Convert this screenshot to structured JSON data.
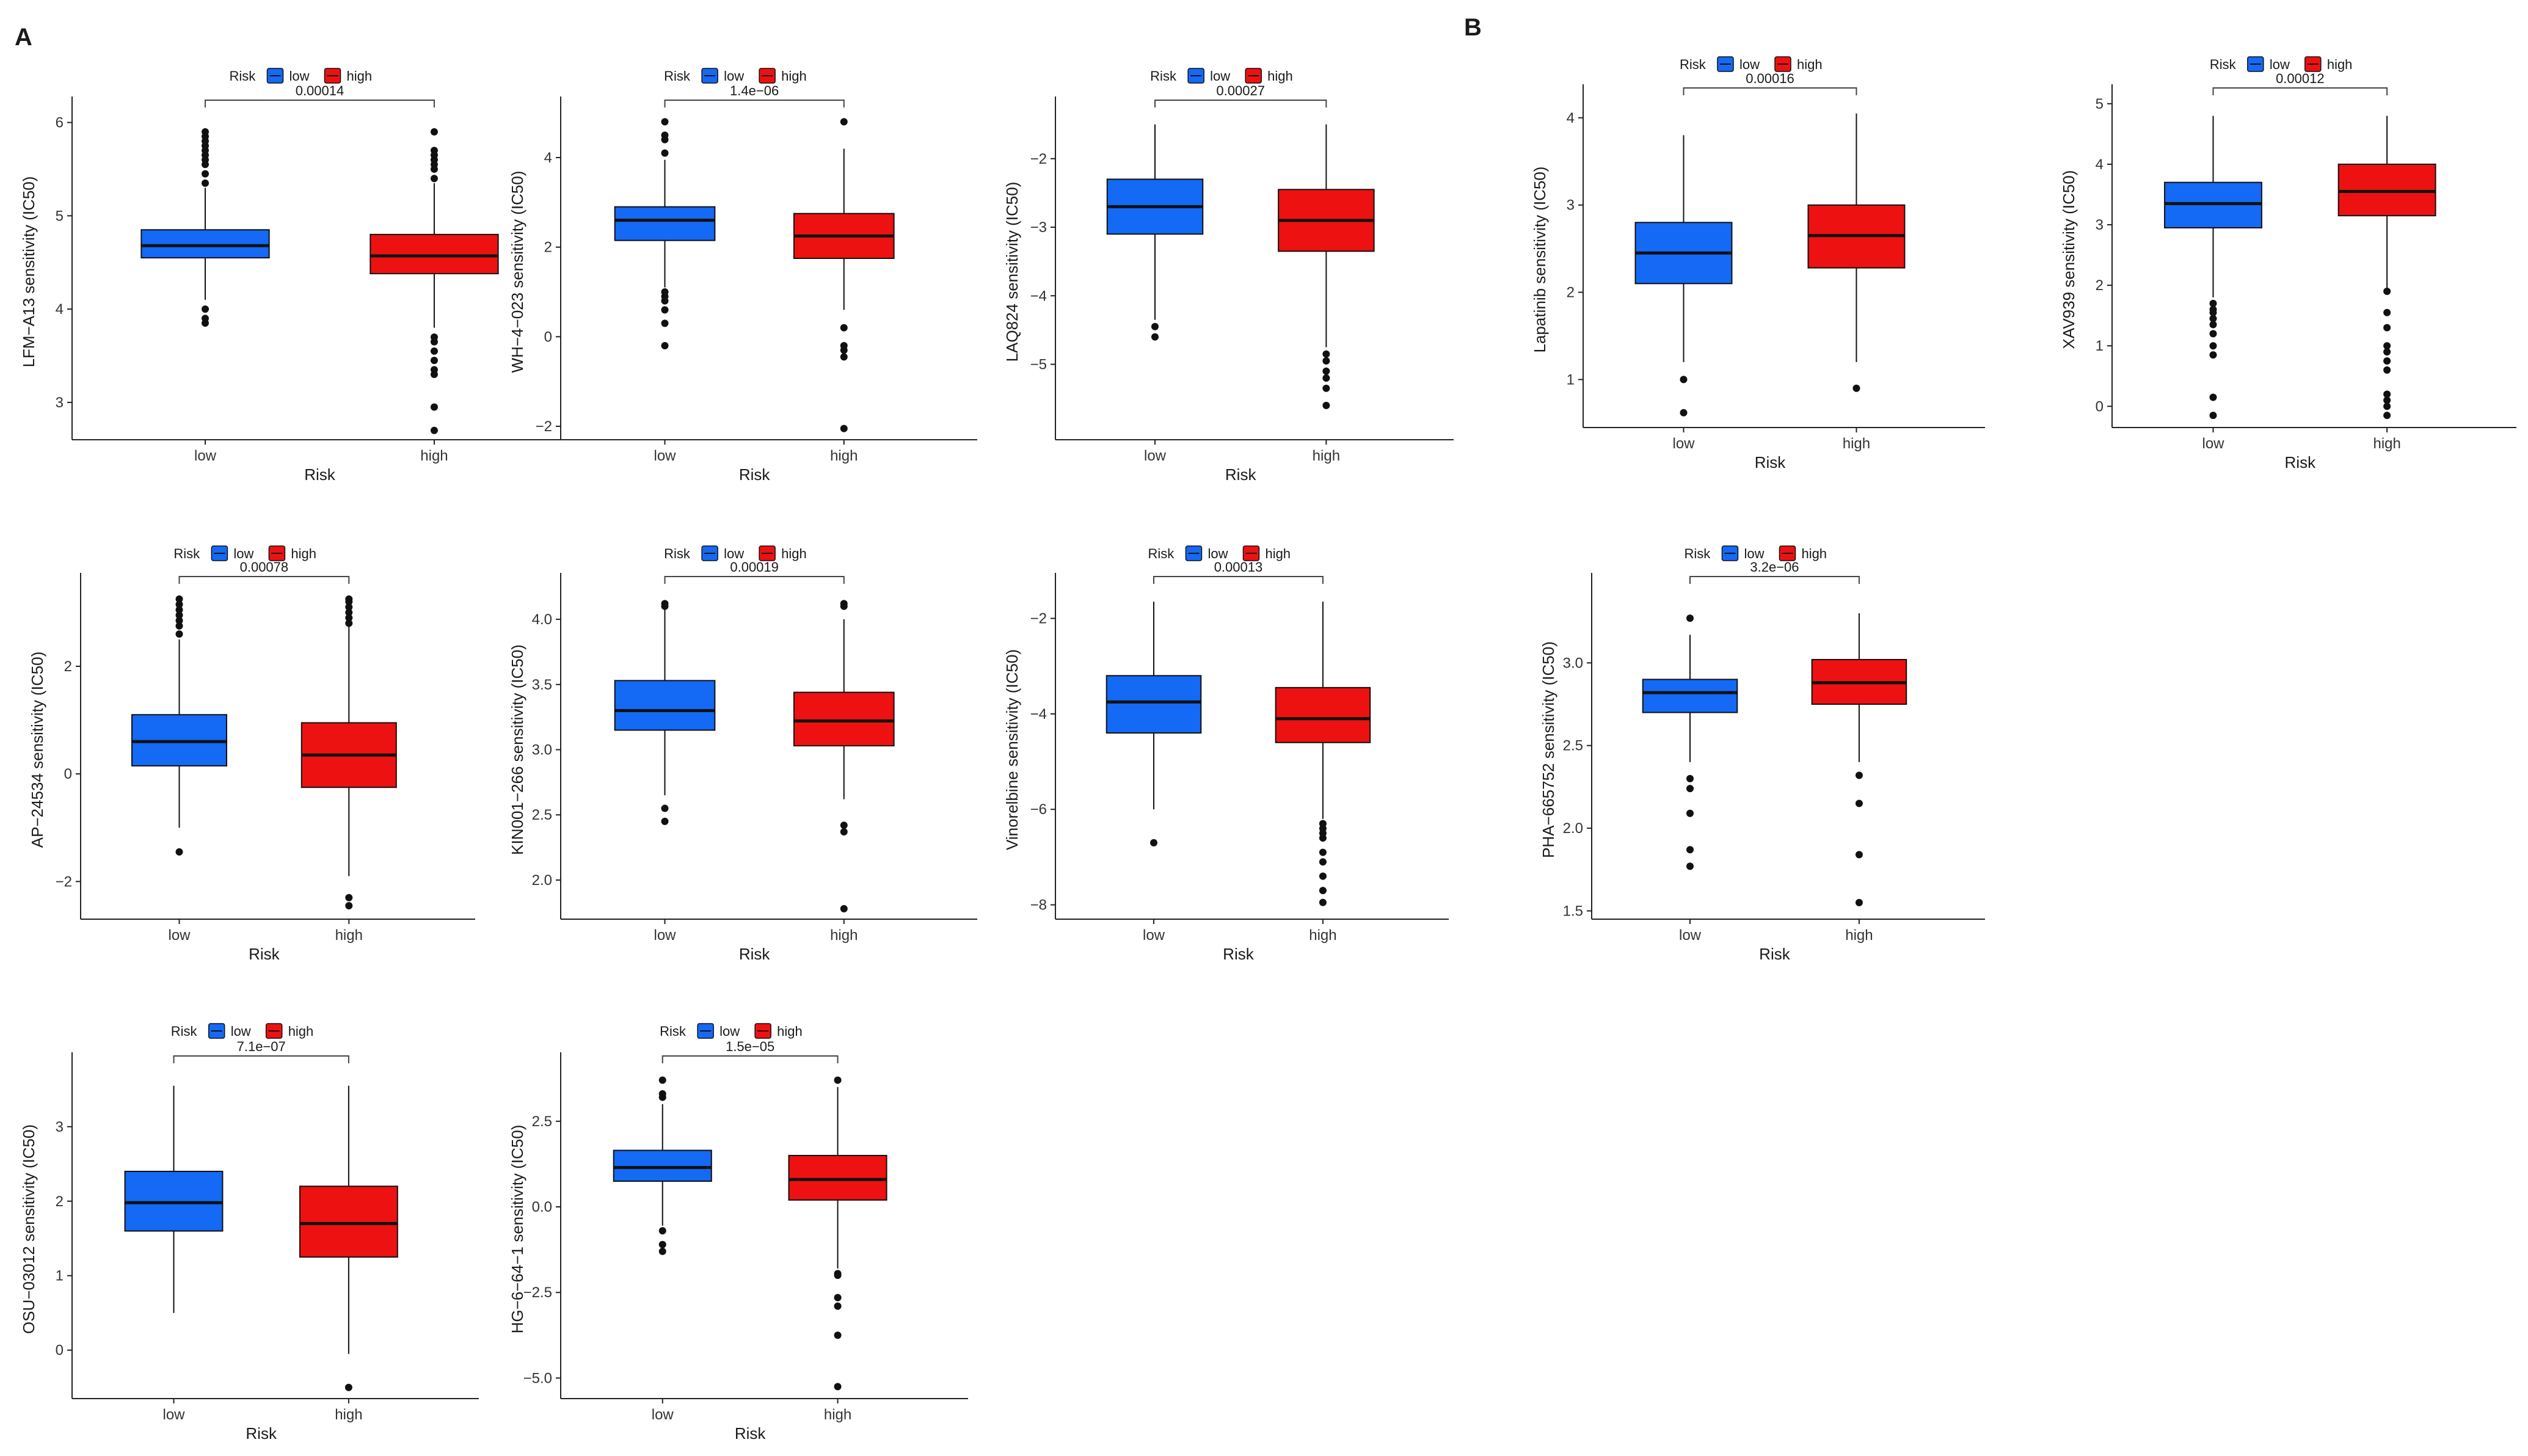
{
  "panel_labels": [
    "A",
    "B"
  ],
  "colors": {
    "low": "#1469f5",
    "high": "#ee1111"
  },
  "legend": {
    "title": "Risk",
    "items": [
      "low",
      "high"
    ]
  },
  "chart_data": [
    {
      "id": "lfm-a13",
      "panel": "A",
      "type": "box",
      "title": "",
      "ylabel": "LFM−A13 sensitivity (IC50)",
      "xlabel": "Risk",
      "categories": [
        "low",
        "high"
      ],
      "ylim": [
        2.6,
        6.2
      ],
      "yticks": [
        {
          "v": 3,
          "t": "3"
        },
        {
          "v": 4,
          "t": "4"
        },
        {
          "v": 5,
          "t": "5"
        },
        {
          "v": 6,
          "t": "6"
        }
      ],
      "pvalue": "0.00014",
      "boxes": [
        {
          "group": "low",
          "q1": 4.55,
          "median": 4.68,
          "q3": 4.85,
          "whisker_low": 4.1,
          "whisker_high": 5.3,
          "outliers": [
            3.85,
            3.9,
            4.0,
            5.35,
            5.45,
            5.55,
            5.6,
            5.65,
            5.7,
            5.75,
            5.8,
            5.85,
            5.9
          ]
        },
        {
          "group": "high",
          "q1": 4.38,
          "median": 4.57,
          "q3": 4.8,
          "whisker_low": 3.8,
          "whisker_high": 5.35,
          "outliers": [
            2.7,
            2.95,
            3.3,
            3.35,
            3.45,
            3.55,
            3.65,
            3.7,
            5.4,
            5.5,
            5.55,
            5.6,
            5.65,
            5.7,
            5.9
          ]
        }
      ]
    },
    {
      "id": "wh-4-023",
      "panel": "A",
      "type": "box",
      "title": "",
      "ylabel": "WH−4−023 sensitivity (IC50)",
      "xlabel": "Risk",
      "categories": [
        "low",
        "high"
      ],
      "ylim": [
        -2.3,
        5.2
      ],
      "yticks": [
        {
          "v": -2,
          "t": "−2"
        },
        {
          "v": 0,
          "t": "0"
        },
        {
          "v": 2,
          "t": "2"
        },
        {
          "v": 4,
          "t": "4"
        }
      ],
      "pvalue": "1.4e−06",
      "boxes": [
        {
          "group": "low",
          "q1": 2.15,
          "median": 2.6,
          "q3": 2.9,
          "whisker_low": 1.1,
          "whisker_high": 3.95,
          "outliers": [
            -0.2,
            0.3,
            0.6,
            0.8,
            0.9,
            1.0,
            4.1,
            4.4,
            4.5,
            4.8
          ]
        },
        {
          "group": "high",
          "q1": 1.75,
          "median": 2.25,
          "q3": 2.75,
          "whisker_low": 0.6,
          "whisker_high": 4.2,
          "outliers": [
            -2.05,
            -0.45,
            -0.3,
            -0.2,
            0.2,
            4.8
          ]
        }
      ]
    },
    {
      "id": "laq824",
      "panel": "A",
      "type": "box",
      "title": "",
      "ylabel": "LAQ824 sensitivity (IC50)",
      "xlabel": "Risk",
      "categories": [
        "low",
        "high"
      ],
      "ylim": [
        -6.1,
        -1.2
      ],
      "yticks": [
        {
          "v": -5,
          "t": "−5"
        },
        {
          "v": -4,
          "t": "−4"
        },
        {
          "v": -3,
          "t": "−3"
        },
        {
          "v": -2,
          "t": "−2"
        }
      ],
      "pvalue": "0.00027",
      "boxes": [
        {
          "group": "low",
          "q1": -3.1,
          "median": -2.7,
          "q3": -2.3,
          "whisker_low": -4.35,
          "whisker_high": -1.5,
          "outliers": [
            -4.45,
            -4.6
          ]
        },
        {
          "group": "high",
          "q1": -3.35,
          "median": -2.9,
          "q3": -2.45,
          "whisker_low": -4.75,
          "whisker_high": -1.5,
          "outliers": [
            -4.85,
            -4.95,
            -5.1,
            -5.2,
            -5.35,
            -5.6
          ]
        }
      ]
    },
    {
      "id": "lapatinib",
      "panel": "B",
      "type": "box",
      "title": "",
      "ylabel": "Lapatinib sensitivity (IC50)",
      "xlabel": "Risk",
      "categories": [
        "low",
        "high"
      ],
      "ylim": [
        0.45,
        4.3
      ],
      "yticks": [
        {
          "v": 1,
          "t": "1"
        },
        {
          "v": 2,
          "t": "2"
        },
        {
          "v": 3,
          "t": "3"
        },
        {
          "v": 4,
          "t": "4"
        }
      ],
      "pvalue": "0.00016",
      "boxes": [
        {
          "group": "low",
          "q1": 2.1,
          "median": 2.45,
          "q3": 2.8,
          "whisker_low": 1.2,
          "whisker_high": 3.8,
          "outliers": [
            0.62,
            1.0
          ]
        },
        {
          "group": "high",
          "q1": 2.28,
          "median": 2.65,
          "q3": 3.0,
          "whisker_low": 1.2,
          "whisker_high": 4.05,
          "outliers": [
            0.9
          ]
        }
      ]
    },
    {
      "id": "xav939",
      "panel": "B",
      "type": "box",
      "title": "",
      "ylabel": "XAV939 sensitivity (IC50)",
      "xlabel": "Risk",
      "categories": [
        "low",
        "high"
      ],
      "ylim": [
        -0.35,
        5.2
      ],
      "yticks": [
        {
          "v": 0,
          "t": "0"
        },
        {
          "v": 1,
          "t": "1"
        },
        {
          "v": 2,
          "t": "2"
        },
        {
          "v": 3,
          "t": "3"
        },
        {
          "v": 4,
          "t": "4"
        },
        {
          "v": 5,
          "t": "5"
        }
      ],
      "pvalue": "0.00012",
      "boxes": [
        {
          "group": "low",
          "q1": 2.95,
          "median": 3.35,
          "q3": 3.7,
          "whisker_low": 1.8,
          "whisker_high": 4.8,
          "outliers": [
            -0.15,
            0.15,
            0.85,
            1.0,
            1.2,
            1.35,
            1.45,
            1.55,
            1.6,
            1.7
          ]
        },
        {
          "group": "high",
          "q1": 3.15,
          "median": 3.55,
          "q3": 4.0,
          "whisker_low": 1.95,
          "whisker_high": 4.8,
          "outliers": [
            -0.15,
            0.0,
            0.1,
            0.2,
            0.6,
            0.75,
            0.9,
            1.0,
            1.3,
            1.55,
            1.9
          ]
        }
      ]
    },
    {
      "id": "ap-24534",
      "panel": "A",
      "type": "box",
      "title": "",
      "ylabel": "AP−24534 sensitivity (IC50)",
      "xlabel": "Risk",
      "categories": [
        "low",
        "high"
      ],
      "ylim": [
        -2.7,
        3.6
      ],
      "yticks": [
        {
          "v": -2,
          "t": "−2"
        },
        {
          "v": 0,
          "t": "0"
        },
        {
          "v": 2,
          "t": "2"
        }
      ],
      "pvalue": "0.00078",
      "boxes": [
        {
          "group": "low",
          "q1": 0.15,
          "median": 0.6,
          "q3": 1.1,
          "whisker_low": -1.0,
          "whisker_high": 2.5,
          "outliers": [
            -1.45,
            2.6,
            2.75,
            2.85,
            2.95,
            3.05,
            3.15,
            3.25
          ]
        },
        {
          "group": "high",
          "q1": -0.25,
          "median": 0.35,
          "q3": 0.95,
          "whisker_low": -1.9,
          "whisker_high": 2.75,
          "outliers": [
            -2.3,
            -2.45,
            2.8,
            2.9,
            3.0,
            3.1,
            3.2,
            3.25
          ]
        }
      ]
    },
    {
      "id": "kin001-266",
      "panel": "A",
      "type": "box",
      "title": "",
      "ylabel": "KIN001−266 sensitivity (IC50)",
      "xlabel": "Risk",
      "categories": [
        "low",
        "high"
      ],
      "ylim": [
        1.7,
        4.3
      ],
      "yticks": [
        {
          "v": 2.0,
          "t": "2.0"
        },
        {
          "v": 2.5,
          "t": "2.5"
        },
        {
          "v": 3.0,
          "t": "3.0"
        },
        {
          "v": 3.5,
          "t": "3.5"
        },
        {
          "v": 4.0,
          "t": "4.0"
        }
      ],
      "pvalue": "0.00019",
      "boxes": [
        {
          "group": "low",
          "q1": 3.15,
          "median": 3.3,
          "q3": 3.53,
          "whisker_low": 2.65,
          "whisker_high": 4.1,
          "outliers": [
            2.45,
            2.55,
            4.1,
            4.12
          ]
        },
        {
          "group": "high",
          "q1": 3.03,
          "median": 3.22,
          "q3": 3.44,
          "whisker_low": 2.62,
          "whisker_high": 4.0,
          "outliers": [
            1.78,
            2.37,
            2.42,
            4.1,
            4.12
          ]
        }
      ]
    },
    {
      "id": "vinorelbine",
      "panel": "A",
      "type": "box",
      "title": "",
      "ylabel": "Vinorelbine sensitivity (IC50)",
      "xlabel": "Risk",
      "categories": [
        "low",
        "high"
      ],
      "ylim": [
        -8.3,
        -1.2
      ],
      "yticks": [
        {
          "v": -8,
          "t": "−8"
        },
        {
          "v": -6,
          "t": "−6"
        },
        {
          "v": -4,
          "t": "−4"
        },
        {
          "v": -2,
          "t": "−2"
        }
      ],
      "pvalue": "0.00013",
      "boxes": [
        {
          "group": "low",
          "q1": -4.4,
          "median": -3.75,
          "q3": -3.2,
          "whisker_low": -6.0,
          "whisker_high": -1.65,
          "outliers": [
            -6.7
          ]
        },
        {
          "group": "high",
          "q1": -4.6,
          "median": -4.1,
          "q3": -3.45,
          "whisker_low": -6.2,
          "whisker_high": -1.65,
          "outliers": [
            -6.3,
            -6.4,
            -6.5,
            -6.6,
            -6.9,
            -7.1,
            -7.4,
            -7.7,
            -7.95
          ]
        }
      ]
    },
    {
      "id": "pha-665752",
      "panel": "B",
      "type": "box",
      "title": "",
      "ylabel": "PHA−665752 sensitivity (IC50)",
      "xlabel": "Risk",
      "categories": [
        "low",
        "high"
      ],
      "ylim": [
        1.45,
        3.5
      ],
      "yticks": [
        {
          "v": 1.5,
          "t": "1.5"
        },
        {
          "v": 2.0,
          "t": "2.0"
        },
        {
          "v": 2.5,
          "t": "2.5"
        },
        {
          "v": 3.0,
          "t": "3.0"
        }
      ],
      "pvalue": "3.2e−06",
      "boxes": [
        {
          "group": "low",
          "q1": 2.7,
          "median": 2.82,
          "q3": 2.9,
          "whisker_low": 2.4,
          "whisker_high": 3.17,
          "outliers": [
            1.77,
            1.87,
            2.09,
            2.24,
            2.3,
            3.27
          ]
        },
        {
          "group": "high",
          "q1": 2.75,
          "median": 2.88,
          "q3": 3.02,
          "whisker_low": 2.4,
          "whisker_high": 3.3,
          "outliers": [
            1.55,
            1.84,
            2.15,
            2.32
          ]
        }
      ]
    },
    {
      "id": "osu-03012",
      "panel": "A",
      "type": "box",
      "title": "",
      "ylabel": "OSU−03012 sensitivity (IC50)",
      "xlabel": "Risk",
      "categories": [
        "low",
        "high"
      ],
      "ylim": [
        -0.65,
        3.9
      ],
      "yticks": [
        {
          "v": 0,
          "t": "0"
        },
        {
          "v": 1,
          "t": "1"
        },
        {
          "v": 2,
          "t": "2"
        },
        {
          "v": 3,
          "t": "3"
        }
      ],
      "pvalue": "7.1e−07",
      "boxes": [
        {
          "group": "low",
          "q1": 1.6,
          "median": 1.98,
          "q3": 2.4,
          "whisker_low": 0.5,
          "whisker_high": 3.55,
          "outliers": []
        },
        {
          "group": "high",
          "q1": 1.25,
          "median": 1.7,
          "q3": 2.2,
          "whisker_low": -0.05,
          "whisker_high": 3.55,
          "outliers": [
            -0.5
          ]
        }
      ]
    },
    {
      "id": "hg-6-64-1",
      "panel": "A",
      "type": "box",
      "title": "",
      "ylabel": "HG−6−64−1 sensitivity (IC50)",
      "xlabel": "Risk",
      "categories": [
        "low",
        "high"
      ],
      "ylim": [
        -5.6,
        4.3
      ],
      "yticks": [
        {
          "v": -5,
          "t": "−5.0"
        },
        {
          "v": -2.5,
          "t": "−2.5"
        },
        {
          "v": 0,
          "t": "0.0"
        },
        {
          "v": 2.5,
          "t": "2.5"
        }
      ],
      "pvalue": "1.5e−05",
      "boxes": [
        {
          "group": "low",
          "q1": 0.75,
          "median": 1.15,
          "q3": 1.65,
          "whisker_low": -0.55,
          "whisker_high": 3.0,
          "outliers": [
            -1.3,
            -1.1,
            -0.7,
            3.2,
            3.3,
            3.7
          ]
        },
        {
          "group": "high",
          "q1": 0.2,
          "median": 0.8,
          "q3": 1.5,
          "whisker_low": -1.8,
          "whisker_high": 3.5,
          "outliers": [
            -5.25,
            -3.75,
            -2.9,
            -2.65,
            -2.0,
            -1.95,
            3.7
          ]
        }
      ]
    }
  ]
}
